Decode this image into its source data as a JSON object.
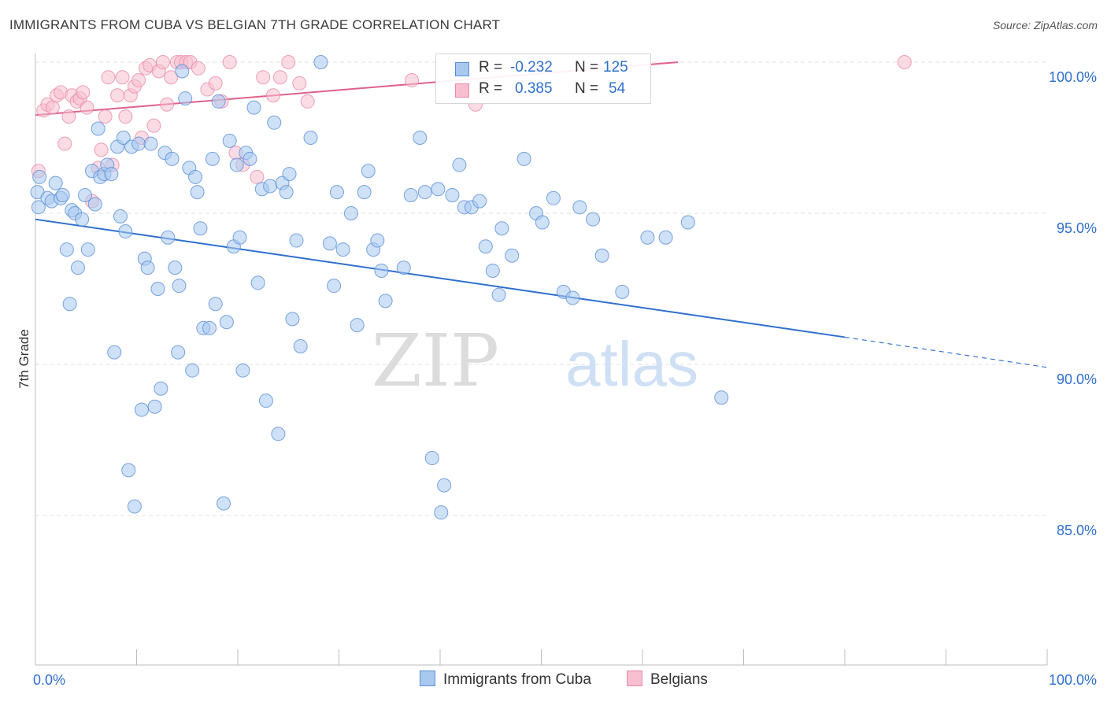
{
  "title": "IMMIGRANTS FROM CUBA VS BELGIAN 7TH GRADE CORRELATION CHART",
  "source": "Source: ZipAtlas.com",
  "watermark": {
    "zip": "ZIP",
    "atlas": "atlas"
  },
  "legend": {
    "series1": {
      "r_label": "R =",
      "r_value": "-0.232",
      "n_label": "N =",
      "n_value": "125"
    },
    "series2": {
      "r_label": "R =",
      "r_value": "0.385",
      "n_label": "N =",
      "n_value": "54"
    }
  },
  "bottom_legend": {
    "series1": "Immigrants from Cuba",
    "series2": "Belgians"
  },
  "colors": {
    "series1_fill": "#a8c8f0",
    "series1_stroke": "#5a8fd6",
    "series1_line": "#2f6fce",
    "series2_fill": "#f7bfd0",
    "series2_stroke": "#e88aa8",
    "series2_line": "#e0608a",
    "axis_text": "#2f6fce",
    "grid": "#e2e2e2"
  },
  "chart_data": {
    "type": "scatter",
    "title": "IMMIGRANTS FROM CUBA VS BELGIAN 7TH GRADE CORRELATION CHART",
    "xlabel": "",
    "ylabel": "7th Grade",
    "xlim": [
      0,
      100
    ],
    "ylim": [
      80.5,
      100.8
    ],
    "x_tick_labels": [
      "0.0%",
      "100.0%"
    ],
    "y_ticks": [
      85,
      90,
      95,
      100
    ],
    "y_tick_labels": [
      "85.0%",
      "90.0%",
      "95.0%",
      "100.0%"
    ],
    "grid": true,
    "series": [
      {
        "name": "Immigrants from Cuba",
        "R": -0.232,
        "N": 125,
        "trend": {
          "x0": 0,
          "y0": 94.8,
          "x1": 80,
          "y1": 90.9,
          "dashed_to_x": 100,
          "dashed_to_y": 89.9
        },
        "points": [
          [
            0.2,
            95.7
          ],
          [
            0.3,
            95.2
          ],
          [
            0.4,
            96.2
          ],
          [
            1.2,
            95.5
          ],
          [
            1.6,
            95.4
          ],
          [
            2.0,
            96.0
          ],
          [
            2.5,
            95.5
          ],
          [
            2.7,
            95.6
          ],
          [
            3.1,
            93.8
          ],
          [
            3.4,
            92.0
          ],
          [
            3.6,
            95.1
          ],
          [
            3.9,
            95.0
          ],
          [
            4.2,
            93.2
          ],
          [
            4.6,
            94.8
          ],
          [
            4.9,
            95.6
          ],
          [
            5.2,
            93.8
          ],
          [
            5.6,
            96.4
          ],
          [
            5.9,
            95.3
          ],
          [
            6.2,
            97.8
          ],
          [
            6.4,
            96.2
          ],
          [
            6.8,
            96.3
          ],
          [
            7.1,
            96.6
          ],
          [
            7.5,
            96.3
          ],
          [
            7.8,
            90.4
          ],
          [
            8.1,
            97.2
          ],
          [
            8.4,
            94.9
          ],
          [
            8.7,
            97.5
          ],
          [
            8.9,
            94.4
          ],
          [
            9.2,
            86.5
          ],
          [
            9.5,
            97.2
          ],
          [
            9.8,
            85.3
          ],
          [
            10.2,
            97.3
          ],
          [
            10.5,
            88.5
          ],
          [
            10.8,
            93.5
          ],
          [
            11.1,
            93.2
          ],
          [
            11.4,
            97.3
          ],
          [
            11.8,
            88.6
          ],
          [
            12.1,
            92.5
          ],
          [
            12.4,
            89.2
          ],
          [
            12.8,
            97.0
          ],
          [
            13.1,
            94.2
          ],
          [
            13.5,
            96.8
          ],
          [
            13.8,
            93.2
          ],
          [
            14.1,
            90.4
          ],
          [
            14.2,
            92.6
          ],
          [
            14.5,
            99.7
          ],
          [
            14.8,
            98.8
          ],
          [
            15.2,
            96.5
          ],
          [
            15.5,
            89.8
          ],
          [
            15.8,
            96.2
          ],
          [
            16.0,
            95.7
          ],
          [
            16.3,
            94.5
          ],
          [
            16.6,
            91.2
          ],
          [
            17.2,
            91.2
          ],
          [
            17.5,
            96.8
          ],
          [
            17.8,
            92.0
          ],
          [
            18.1,
            98.7
          ],
          [
            18.6,
            85.4
          ],
          [
            18.9,
            91.4
          ],
          [
            19.2,
            97.4
          ],
          [
            19.6,
            93.9
          ],
          [
            19.9,
            96.6
          ],
          [
            20.2,
            94.2
          ],
          [
            20.5,
            89.8
          ],
          [
            20.8,
            97.0
          ],
          [
            21.2,
            96.8
          ],
          [
            21.6,
            98.5
          ],
          [
            22.0,
            92.7
          ],
          [
            22.4,
            95.8
          ],
          [
            22.8,
            88.8
          ],
          [
            23.2,
            95.9
          ],
          [
            23.6,
            98.0
          ],
          [
            24.0,
            87.7
          ],
          [
            24.4,
            96.0
          ],
          [
            24.8,
            95.7
          ],
          [
            25.1,
            96.3
          ],
          [
            25.4,
            91.5
          ],
          [
            25.8,
            94.1
          ],
          [
            26.2,
            90.6
          ],
          [
            27.2,
            97.5
          ],
          [
            28.2,
            100.0
          ],
          [
            29.1,
            94.0
          ],
          [
            29.5,
            92.6
          ],
          [
            29.8,
            95.7
          ],
          [
            30.4,
            93.8
          ],
          [
            31.2,
            95.0
          ],
          [
            31.8,
            91.3
          ],
          [
            32.5,
            95.7
          ],
          [
            32.9,
            96.4
          ],
          [
            33.4,
            93.8
          ],
          [
            33.8,
            94.1
          ],
          [
            34.2,
            93.1
          ],
          [
            34.6,
            92.1
          ],
          [
            36.4,
            93.2
          ],
          [
            37.1,
            95.6
          ],
          [
            38.0,
            97.5
          ],
          [
            38.5,
            95.7
          ],
          [
            39.2,
            86.9
          ],
          [
            39.8,
            95.8
          ],
          [
            40.1,
            85.1
          ],
          [
            40.4,
            86.0
          ],
          [
            41.2,
            95.6
          ],
          [
            41.9,
            96.6
          ],
          [
            42.4,
            95.2
          ],
          [
            43.1,
            95.2
          ],
          [
            43.9,
            95.4
          ],
          [
            44.5,
            93.9
          ],
          [
            45.2,
            93.1
          ],
          [
            45.8,
            92.3
          ],
          [
            46.1,
            94.5
          ],
          [
            47.1,
            93.6
          ],
          [
            48.3,
            96.8
          ],
          [
            49.5,
            95.0
          ],
          [
            50.1,
            94.7
          ],
          [
            51.2,
            95.5
          ],
          [
            52.2,
            92.4
          ],
          [
            53.1,
            92.2
          ],
          [
            53.8,
            95.2
          ],
          [
            55.1,
            94.8
          ],
          [
            56.0,
            93.6
          ],
          [
            58.0,
            92.4
          ],
          [
            60.5,
            94.2
          ],
          [
            62.3,
            94.2
          ],
          [
            64.5,
            94.7
          ],
          [
            67.8,
            88.9
          ]
        ]
      },
      {
        "name": "Belgians",
        "R": 0.385,
        "N": 54,
        "trend": {
          "x0": 0,
          "y0": 98.25,
          "x1": 63.5,
          "y1": 100.0
        },
        "points": [
          [
            0.3,
            96.4
          ],
          [
            0.8,
            98.4
          ],
          [
            1.2,
            98.6
          ],
          [
            1.7,
            98.5
          ],
          [
            2.1,
            98.9
          ],
          [
            2.5,
            99.0
          ],
          [
            2.9,
            97.3
          ],
          [
            3.3,
            98.2
          ],
          [
            3.6,
            98.9
          ],
          [
            4.1,
            98.7
          ],
          [
            4.4,
            98.8
          ],
          [
            4.7,
            99.0
          ],
          [
            5.1,
            98.5
          ],
          [
            5.6,
            95.4
          ],
          [
            6.2,
            96.5
          ],
          [
            6.5,
            97.1
          ],
          [
            6.9,
            98.2
          ],
          [
            7.2,
            99.5
          ],
          [
            7.6,
            96.6
          ],
          [
            8.1,
            98.9
          ],
          [
            8.6,
            99.5
          ],
          [
            8.9,
            98.2
          ],
          [
            9.4,
            98.9
          ],
          [
            9.8,
            99.2
          ],
          [
            10.2,
            99.4
          ],
          [
            10.5,
            97.5
          ],
          [
            10.9,
            99.8
          ],
          [
            11.3,
            99.9
          ],
          [
            11.7,
            97.9
          ],
          [
            12.2,
            99.7
          ],
          [
            12.6,
            100.0
          ],
          [
            13.0,
            98.6
          ],
          [
            13.4,
            99.5
          ],
          [
            14.0,
            100.0
          ],
          [
            14.4,
            100.0
          ],
          [
            14.9,
            100.0
          ],
          [
            15.3,
            100.0
          ],
          [
            16.1,
            99.8
          ],
          [
            17.0,
            99.1
          ],
          [
            17.8,
            99.3
          ],
          [
            18.4,
            98.7
          ],
          [
            19.2,
            100.0
          ],
          [
            19.8,
            97.0
          ],
          [
            20.5,
            96.6
          ],
          [
            21.9,
            96.2
          ],
          [
            22.5,
            99.5
          ],
          [
            23.5,
            98.9
          ],
          [
            24.2,
            99.5
          ],
          [
            25.0,
            100.0
          ],
          [
            26.1,
            99.3
          ],
          [
            26.9,
            98.7
          ],
          [
            37.2,
            99.4
          ],
          [
            43.5,
            98.6
          ],
          [
            85.9,
            100.0
          ]
        ]
      }
    ]
  }
}
